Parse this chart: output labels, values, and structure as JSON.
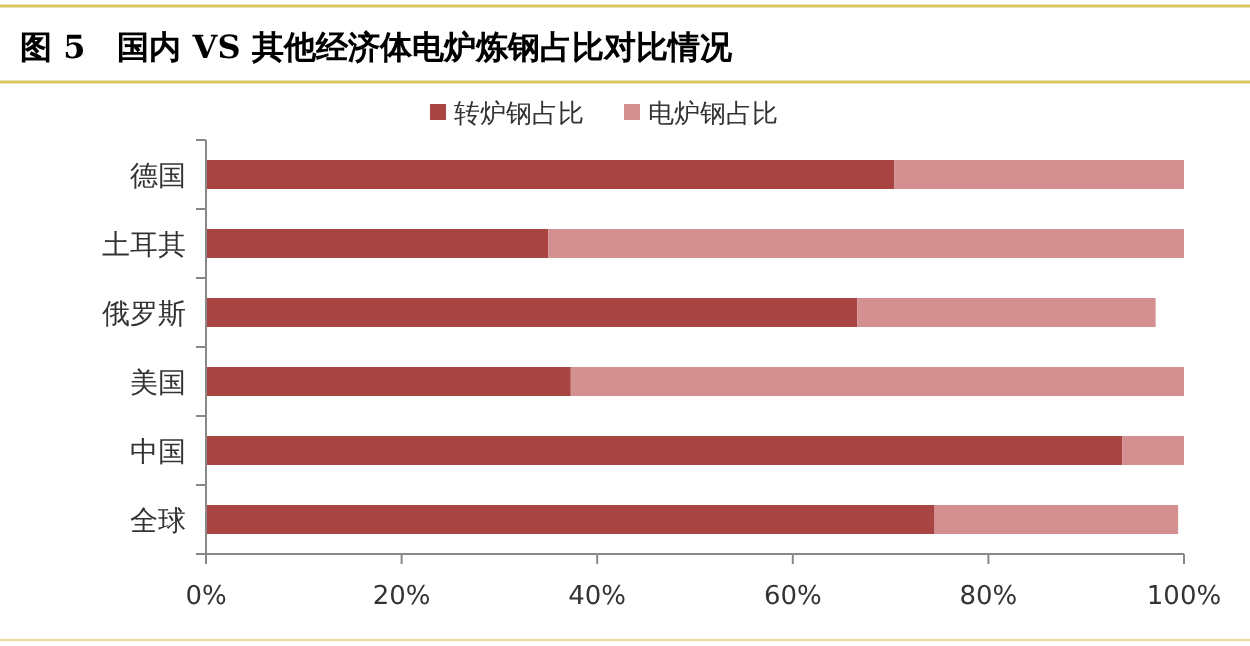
{
  "chart_data": {
    "type": "bar",
    "orientation": "horizontal",
    "stacked": true,
    "title": "图 5　国内 VS 其他经济体电炉炼钢占比对比情况",
    "categories": [
      "德国",
      "土耳其",
      "俄罗斯",
      "美国",
      "中国",
      "全球"
    ],
    "series": [
      {
        "name": "转炉钢占比",
        "color": "#a84542",
        "values": [
          70.4,
          35.0,
          66.6,
          37.3,
          93.7,
          74.5
        ]
      },
      {
        "name": "电炉钢占比",
        "color": "#d49090",
        "values": [
          29.6,
          65.0,
          30.5,
          62.7,
          6.3,
          24.9
        ]
      }
    ],
    "xlim": [
      0,
      100
    ],
    "xticks": [
      {
        "value": 0,
        "label": "0%"
      },
      {
        "value": 20,
        "label": "20%"
      },
      {
        "value": 40,
        "label": "40%"
      },
      {
        "value": 60,
        "label": "60%"
      },
      {
        "value": 80,
        "label": "80%"
      },
      {
        "value": 100,
        "label": "100%"
      }
    ],
    "legend": "top",
    "grid": false
  }
}
